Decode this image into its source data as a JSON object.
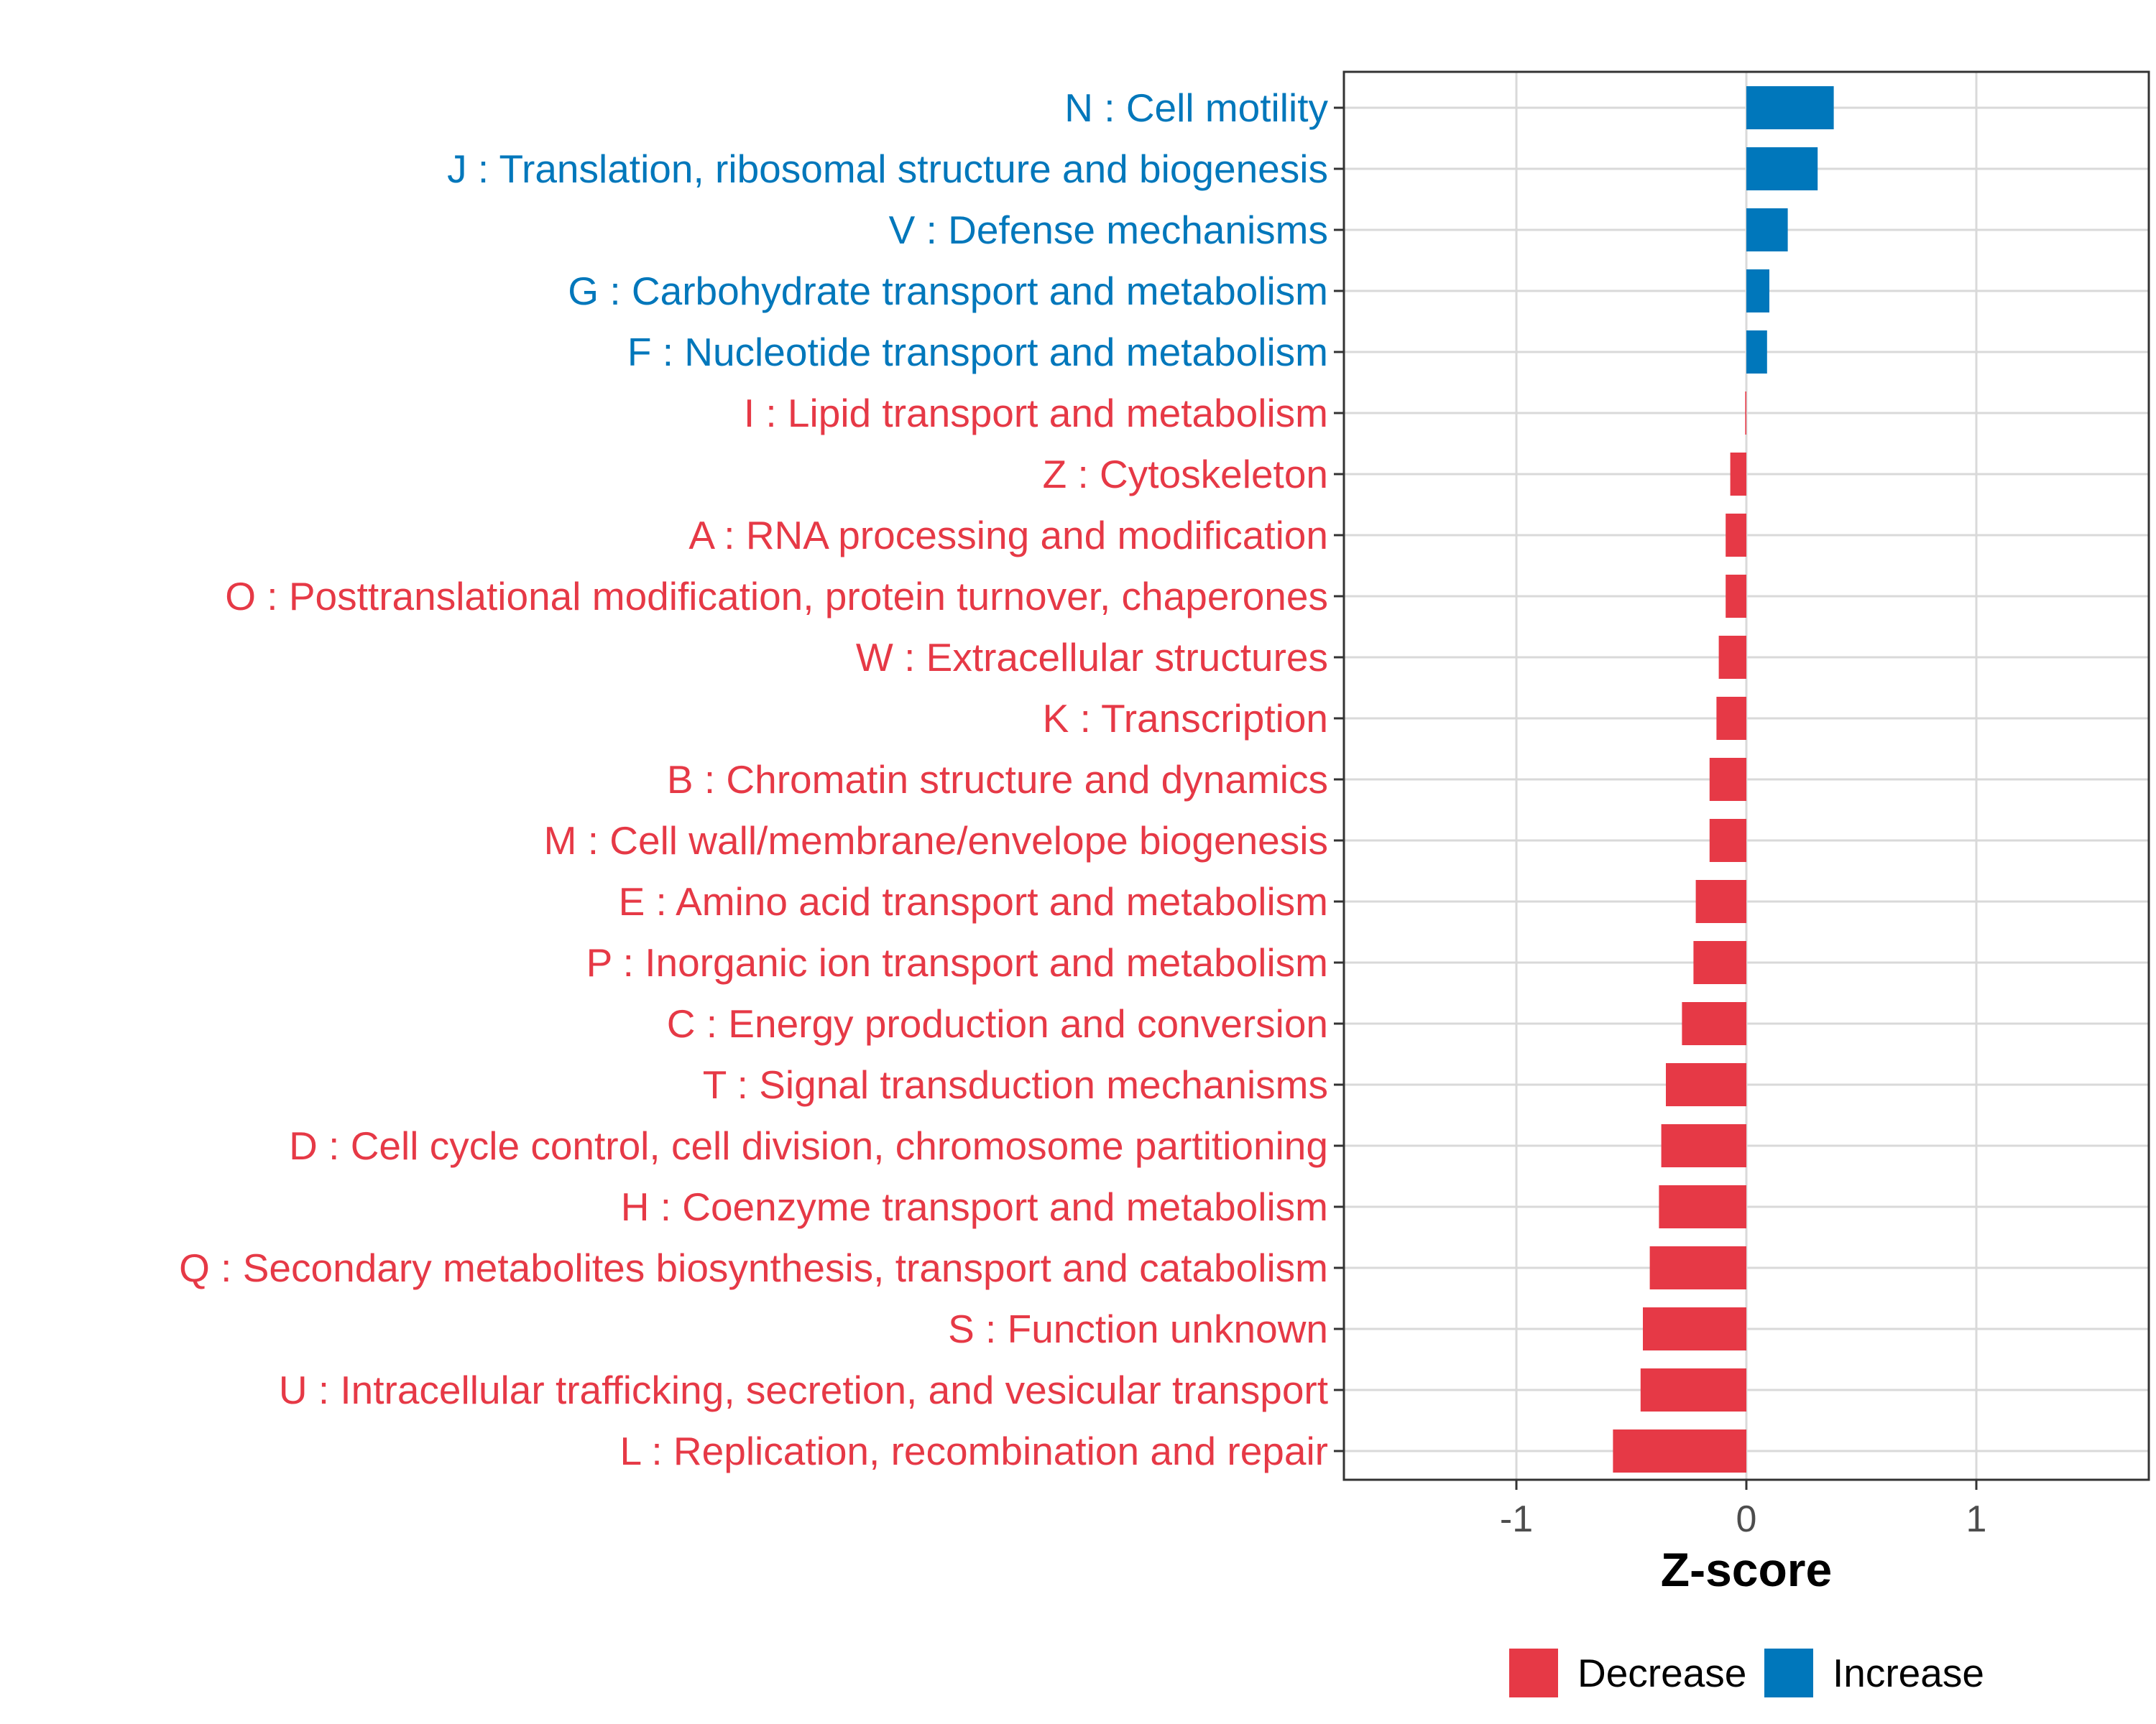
{
  "chart_data": {
    "type": "bar",
    "orientation": "horizontal",
    "xlabel": "Z-score",
    "xlim": [
      -1.75,
      1.75
    ],
    "xticks": [
      -1,
      0,
      1
    ],
    "xtick_labels": [
      "-1",
      "0",
      "1"
    ],
    "grid": true,
    "legend_position": "bottom",
    "categories": [
      "N : Cell motility",
      "J : Translation, ribosomal structure and biogenesis",
      "V : Defense mechanisms",
      "G : Carbohydrate transport and metabolism",
      "F : Nucleotide transport and metabolism",
      "I : Lipid transport and metabolism",
      "Z : Cytoskeleton",
      "A : RNA processing and modification",
      "O : Posttranslational modification, protein turnover, chaperones",
      "W : Extracellular structures",
      "K : Transcription",
      "B : Chromatin structure and dynamics",
      "M : Cell wall/membrane/envelope biogenesis",
      "E : Amino acid transport and metabolism",
      "P : Inorganic ion transport and metabolism",
      "C : Energy production and conversion",
      "T : Signal transduction mechanisms",
      "D : Cell cycle control, cell division, chromosome partitioning",
      "H : Coenzyme transport and metabolism",
      "Q : Secondary metabolites biosynthesis, transport and catabolism",
      "S : Function unknown",
      "U : Intracellular trafficking, secretion, and vesicular transport",
      "L : Replication, recombination and repair"
    ],
    "values": [
      0.38,
      0.31,
      0.18,
      0.1,
      0.09,
      -0.005,
      -0.07,
      -0.09,
      -0.09,
      -0.12,
      -0.13,
      -0.16,
      -0.16,
      -0.22,
      -0.23,
      -0.28,
      -0.35,
      -0.37,
      -0.38,
      -0.42,
      -0.45,
      -0.46,
      -0.58
    ],
    "groups": [
      "Increase",
      "Increase",
      "Increase",
      "Increase",
      "Increase",
      "Decrease",
      "Decrease",
      "Decrease",
      "Decrease",
      "Decrease",
      "Decrease",
      "Decrease",
      "Decrease",
      "Decrease",
      "Decrease",
      "Decrease",
      "Decrease",
      "Decrease",
      "Decrease",
      "Decrease",
      "Decrease",
      "Decrease",
      "Decrease"
    ],
    "legend": [
      {
        "label": "Decrease",
        "color": "#E63946"
      },
      {
        "label": "Increase",
        "color": "#0077BB"
      }
    ]
  },
  "colors": {
    "decrease": "#E63946",
    "increase": "#0077BB",
    "grid": "#d9d9d9",
    "tick_text": "#4d4d4d"
  }
}
